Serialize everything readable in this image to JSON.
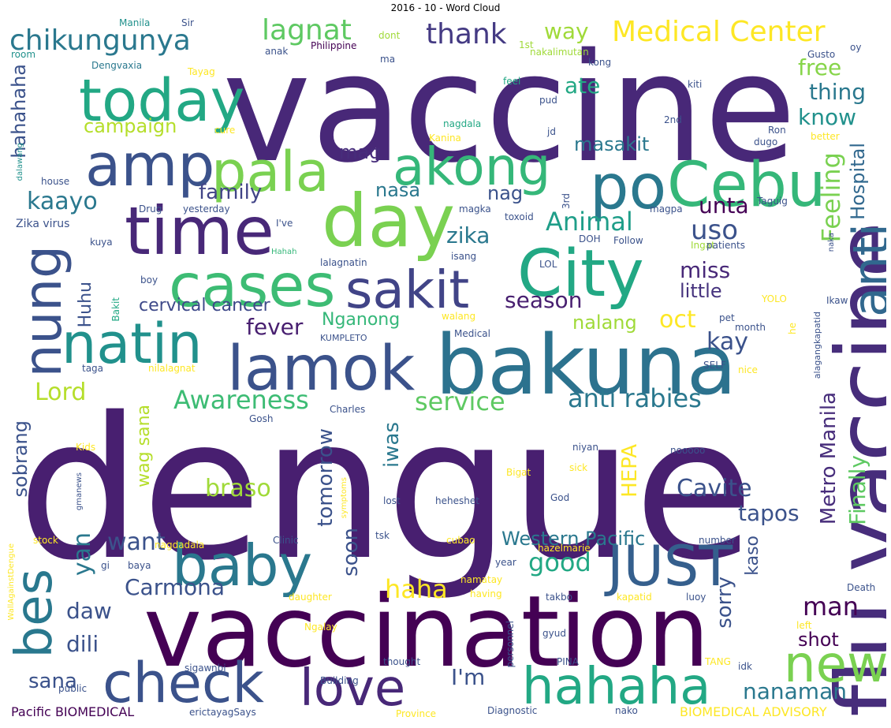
{
  "title": "2016 - 10 - Word Cloud",
  "words": [
    {
      "text": "dengue",
      "color": "#481f70"
    },
    {
      "text": "vaccine",
      "color": "#482878"
    },
    {
      "text": "vaccination",
      "color": "#440154"
    },
    {
      "text": "bakuna",
      "color": "#2c728e"
    },
    {
      "text": "lamok",
      "color": "#3b528b"
    },
    {
      "text": "flu vaccine",
      "color": "#472d7b"
    },
    {
      "text": "day",
      "color": "#7ad151"
    },
    {
      "text": "time",
      "color": "#482878"
    },
    {
      "text": "City",
      "color": "#22a884"
    },
    {
      "text": "Cebu",
      "color": "#35b779"
    },
    {
      "text": "cases",
      "color": "#3dbc74"
    },
    {
      "text": "today",
      "color": "#22a884"
    },
    {
      "text": "amp",
      "color": "#3b528b"
    },
    {
      "text": "pala",
      "color": "#7ad151"
    },
    {
      "text": "po",
      "color": "#2a788e"
    },
    {
      "text": "akong",
      "color": "#35b779"
    },
    {
      "text": "nung",
      "color": "#3b528b"
    },
    {
      "text": "natin",
      "color": "#21918c"
    },
    {
      "text": "sakit",
      "color": "#414487"
    },
    {
      "text": "anti",
      "color": "#31688e"
    },
    {
      "text": "baby",
      "color": "#2a788e"
    },
    {
      "text": "JUST",
      "color": "#355f8d"
    },
    {
      "text": "check",
      "color": "#3b528b"
    },
    {
      "text": "love",
      "color": "#482878"
    },
    {
      "text": "hahaha",
      "color": "#22a884"
    },
    {
      "text": "new",
      "color": "#7ad151"
    },
    {
      "text": "bes",
      "color": "#29788e"
    },
    {
      "text": "chikungunya",
      "color": "#2a788e"
    },
    {
      "text": "Medical Center",
      "color": "#fde725"
    },
    {
      "text": "thank",
      "color": "#443a83"
    },
    {
      "text": "lagnat",
      "color": "#5ec962"
    },
    {
      "text": "way",
      "color": "#a0da39"
    },
    {
      "text": "free",
      "color": "#86d549"
    },
    {
      "text": "thing",
      "color": "#2a788e"
    },
    {
      "text": "know",
      "color": "#21918c"
    },
    {
      "text": "ate",
      "color": "#22a884"
    },
    {
      "text": "hahahaha",
      "color": "#3b528b"
    },
    {
      "text": "campaign",
      "color": "#b5de2b"
    },
    {
      "text": "masakit",
      "color": "#2a788e"
    },
    {
      "text": "mag",
      "color": "#472d7b"
    },
    {
      "text": "nasa",
      "color": "#2a788e"
    },
    {
      "text": "nag",
      "color": "#3b528b"
    },
    {
      "text": "family",
      "color": "#414487"
    },
    {
      "text": "kaayo",
      "color": "#2a788e"
    },
    {
      "text": "Animal",
      "color": "#1f9e89"
    },
    {
      "text": "unta",
      "color": "#440154"
    },
    {
      "text": "uso",
      "color": "#3b528b"
    },
    {
      "text": "Feeling",
      "color": "#7ad151"
    },
    {
      "text": "Hospital",
      "color": "#31688e"
    },
    {
      "text": "zika",
      "color": "#2a788e"
    },
    {
      "text": "miss",
      "color": "#482878"
    },
    {
      "text": "little",
      "color": "#46337e"
    },
    {
      "text": "season",
      "color": "#481f70"
    },
    {
      "text": "oct",
      "color": "#fde725"
    },
    {
      "text": "nalang",
      "color": "#a0da39"
    },
    {
      "text": "cervical cancer",
      "color": "#3e4989"
    },
    {
      "text": "Huhu",
      "color": "#3b528b"
    },
    {
      "text": "Nganong",
      "color": "#35b779"
    },
    {
      "text": "fever",
      "color": "#481f70"
    },
    {
      "text": "kay",
      "color": "#3b528b"
    },
    {
      "text": "Lord",
      "color": "#b5de2b"
    },
    {
      "text": "Awareness",
      "color": "#3dbc74"
    },
    {
      "text": "service",
      "color": "#5ec962"
    },
    {
      "text": "anti rabies",
      "color": "#2a788e"
    },
    {
      "text": "wag sana",
      "color": "#b5de2b"
    },
    {
      "text": "iwas",
      "color": "#2a788e"
    },
    {
      "text": "tomorrow",
      "color": "#3b528b"
    },
    {
      "text": "sobrang",
      "color": "#3b528b"
    },
    {
      "text": "braso",
      "color": "#a0da39"
    },
    {
      "text": "HEPA",
      "color": "#fde725"
    },
    {
      "text": "Cavite",
      "color": "#3b528b"
    },
    {
      "text": "Metro Manila",
      "color": "#472d7b"
    },
    {
      "text": "Finally",
      "color": "#5ec962"
    },
    {
      "text": "tapos",
      "color": "#3b528b"
    },
    {
      "text": "yan",
      "color": "#2a788e"
    },
    {
      "text": "want",
      "color": "#3b528b"
    },
    {
      "text": "soon",
      "color": "#3b528b"
    },
    {
      "text": "Western Pacific",
      "color": "#2a788e"
    },
    {
      "text": "Carmona",
      "color": "#3b528b"
    },
    {
      "text": "good",
      "color": "#22a884"
    },
    {
      "text": "sorry",
      "color": "#3b528b"
    },
    {
      "text": "kaso",
      "color": "#3b528b"
    },
    {
      "text": "man",
      "color": "#440154"
    },
    {
      "text": "daw",
      "color": "#3b528b"
    },
    {
      "text": "haha",
      "color": "#fde725"
    },
    {
      "text": "dili",
      "color": "#3b528b"
    },
    {
      "text": "shot",
      "color": "#440154"
    },
    {
      "text": "nanaman",
      "color": "#2a788e"
    },
    {
      "text": "sana",
      "color": "#3b528b"
    },
    {
      "text": "I'm",
      "color": "#3b528b"
    },
    {
      "text": "Pacific BIOMEDICAL",
      "color": "#440154"
    },
    {
      "text": "BIOMEDICAL ADVISORY",
      "color": "#fde725"
    },
    {
      "text": "Manila",
      "color": "#21918c"
    },
    {
      "text": "Sir",
      "color": "#3b528b"
    },
    {
      "text": "dont",
      "color": "#a0da39"
    },
    {
      "text": "room",
      "color": "#21918c"
    },
    {
      "text": "anak",
      "color": "#3b528b"
    },
    {
      "text": "Philippine",
      "color": "#440154"
    },
    {
      "text": "1st",
      "color": "#a0da39"
    },
    {
      "text": "nakalimutan",
      "color": "#a0da39"
    },
    {
      "text": "Gusto",
      "color": "#3b528b"
    },
    {
      "text": "oy",
      "color": "#3b528b"
    },
    {
      "text": "Dengvaxia",
      "color": "#2a788e"
    },
    {
      "text": "ma",
      "color": "#3b528b"
    },
    {
      "text": "kong",
      "color": "#3b528b"
    },
    {
      "text": "Tayag",
      "color": "#fde725"
    },
    {
      "text": "feel",
      "color": "#22a884"
    },
    {
      "text": "kiti",
      "color": "#3b528b"
    },
    {
      "text": "nagdala",
      "color": "#22a884"
    },
    {
      "text": "pud",
      "color": "#3b528b"
    },
    {
      "text": "cure",
      "color": "#fde725"
    },
    {
      "text": "2nd",
      "color": "#3b528b"
    },
    {
      "text": "Ron",
      "color": "#3b528b"
    },
    {
      "text": "jd",
      "color": "#3b528b"
    },
    {
      "text": "better",
      "color": "#fde725"
    },
    {
      "text": "Kanina",
      "color": "#fde725"
    },
    {
      "text": "dugo",
      "color": "#3b528b"
    },
    {
      "text": "dalawang",
      "color": "#21918c"
    },
    {
      "text": "house",
      "color": "#3b528b"
    },
    {
      "text": "Drug",
      "color": "#3b528b"
    },
    {
      "text": "yesterday",
      "color": "#3b528b"
    },
    {
      "text": "3rd",
      "color": "#3b528b"
    },
    {
      "text": "magka",
      "color": "#3b528b"
    },
    {
      "text": "toxoid",
      "color": "#3b528b"
    },
    {
      "text": "magpa",
      "color": "#3b528b"
    },
    {
      "text": "Taguig",
      "color": "#3b528b"
    },
    {
      "text": "Zika virus",
      "color": "#3b528b"
    },
    {
      "text": "I've",
      "color": "#3b528b"
    },
    {
      "text": "kuya",
      "color": "#3b528b"
    },
    {
      "text": "DOH",
      "color": "#3b528b"
    },
    {
      "text": "Follow",
      "color": "#3b528b"
    },
    {
      "text": "Ingat",
      "color": "#a0da39"
    },
    {
      "text": "patients",
      "color": "#3b528b"
    },
    {
      "text": "naka",
      "color": "#3b528b"
    },
    {
      "text": "Hahah",
      "color": "#35b779"
    },
    {
      "text": "isang",
      "color": "#3b528b"
    },
    {
      "text": "lalagnatin",
      "color": "#3b528b"
    },
    {
      "text": "LOL",
      "color": "#3b528b"
    },
    {
      "text": "boy",
      "color": "#3b528b"
    },
    {
      "text": "YOLO",
      "color": "#fde725"
    },
    {
      "text": "Ikaw",
      "color": "#3b528b"
    },
    {
      "text": "Bakit",
      "color": "#22a884"
    },
    {
      "text": "walang",
      "color": "#fde725"
    },
    {
      "text": "alagangkapatid",
      "color": "#3b528b"
    },
    {
      "text": "pet",
      "color": "#3b528b"
    },
    {
      "text": "month",
      "color": "#3b528b"
    },
    {
      "text": "he",
      "color": "#fde725"
    },
    {
      "text": "KUMPLETO",
      "color": "#3b528b"
    },
    {
      "text": "Medical",
      "color": "#3b528b"
    },
    {
      "text": "taga",
      "color": "#3b528b"
    },
    {
      "text": "nilalagnat",
      "color": "#fde725"
    },
    {
      "text": "SELF",
      "color": "#3b528b"
    },
    {
      "text": "nice",
      "color": "#fde725"
    },
    {
      "text": "Charles",
      "color": "#3b528b"
    },
    {
      "text": "Gosh",
      "color": "#3b528b"
    },
    {
      "text": "Kids",
      "color": "#fde725"
    },
    {
      "text": "niyan",
      "color": "#3b528b"
    },
    {
      "text": "nooooo",
      "color": "#3b528b"
    },
    {
      "text": "sick",
      "color": "#fde725"
    },
    {
      "text": "Bigat",
      "color": "#fde725"
    },
    {
      "text": "gmanews",
      "color": "#3b528b"
    },
    {
      "text": "symptoms",
      "color": "#fde725"
    },
    {
      "text": "lost",
      "color": "#3b528b"
    },
    {
      "text": "heheshet",
      "color": "#3b528b"
    },
    {
      "text": "God",
      "color": "#3b528b"
    },
    {
      "text": "stock",
      "color": "#fde725"
    },
    {
      "text": "nagdadala",
      "color": "#fde725"
    },
    {
      "text": "Clinic",
      "color": "#3b528b"
    },
    {
      "text": "tsk",
      "color": "#3b528b"
    },
    {
      "text": "cubao",
      "color": "#fde725"
    },
    {
      "text": "hazelmarie",
      "color": "#fde725"
    },
    {
      "text": "number",
      "color": "#3b528b"
    },
    {
      "text": "WallAgainstDengue",
      "color": "#fde725"
    },
    {
      "text": "gi",
      "color": "#3b528b"
    },
    {
      "text": "baya",
      "color": "#3b528b"
    },
    {
      "text": "namatay",
      "color": "#fde725"
    },
    {
      "text": "year",
      "color": "#3b528b"
    },
    {
      "text": "having",
      "color": "#fde725"
    },
    {
      "text": "daughter",
      "color": "#fde725"
    },
    {
      "text": "takbo",
      "color": "#3b528b"
    },
    {
      "text": "kapatid",
      "color": "#fde725"
    },
    {
      "text": "luoy",
      "color": "#3b528b"
    },
    {
      "text": "Death",
      "color": "#3b528b"
    },
    {
      "text": "left",
      "color": "#fde725"
    },
    {
      "text": "Ngalay",
      "color": "#fde725"
    },
    {
      "text": "personnel",
      "color": "#3b528b"
    },
    {
      "text": "gyud",
      "color": "#3b528b"
    },
    {
      "text": "sigaw",
      "color": "#3b528b"
    },
    {
      "text": "nbi",
      "color": "#3b528b"
    },
    {
      "text": "Building",
      "color": "#3b528b"
    },
    {
      "text": "thought",
      "color": "#3b528b"
    },
    {
      "text": "PINA",
      "color": "#3b528b"
    },
    {
      "text": "TANG",
      "color": "#fde725"
    },
    {
      "text": "idk",
      "color": "#3b528b"
    },
    {
      "text": "public",
      "color": "#3b528b"
    },
    {
      "text": "erictayagSays",
      "color": "#3b528b"
    },
    {
      "text": "Province",
      "color": "#fde725"
    },
    {
      "text": "Diagnostic",
      "color": "#3b528b"
    },
    {
      "text": "nako",
      "color": "#3b528b"
    }
  ]
}
